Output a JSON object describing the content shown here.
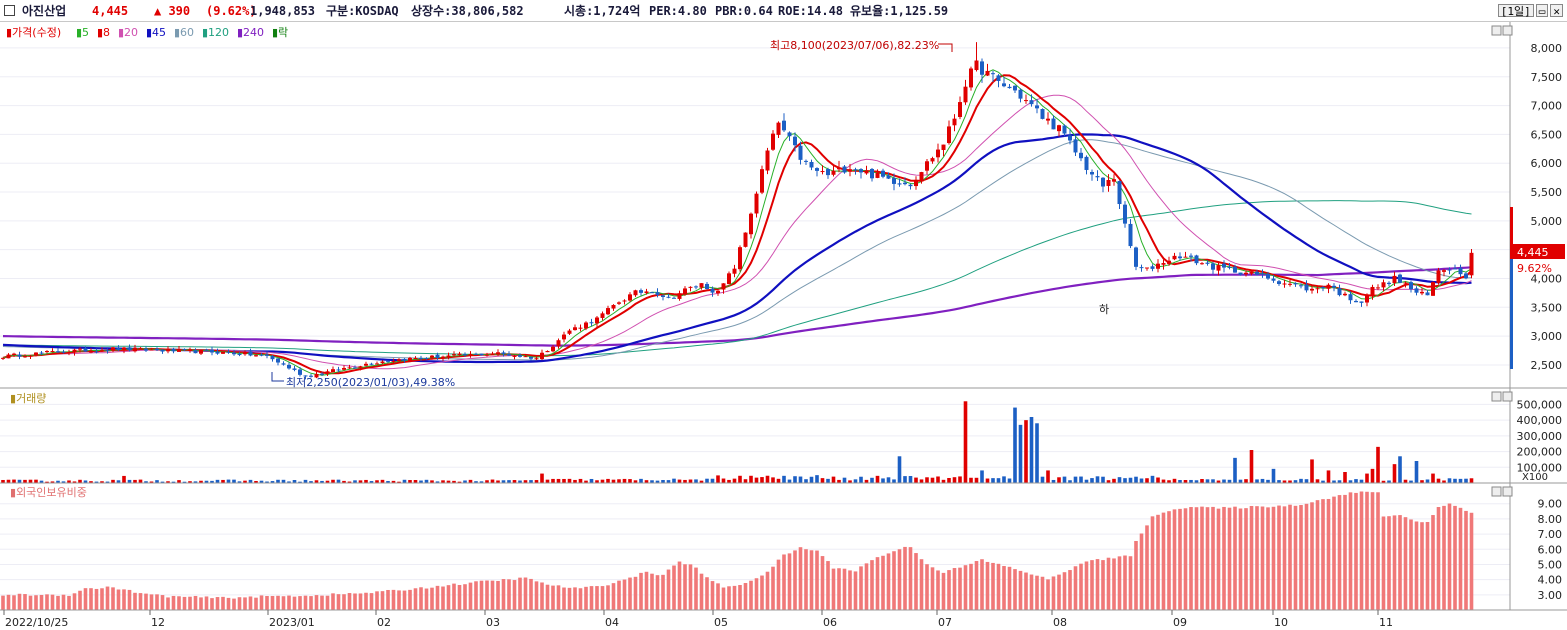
{
  "header": {
    "name": "아진산업",
    "price": "4,445",
    "change": "▲ 390",
    "change_pct": "(9.62%)",
    "volume": "1,948,853",
    "market": "구분:KOSDAQ",
    "shares": "상장수:38,806,582",
    "mcap": "시총:1,724억",
    "per": "PER:4.80",
    "pbr": "PBR:0.64",
    "roe": "ROE:14.48",
    "float_ratio": "유보율:1,125.59",
    "period": "[1일]",
    "colors": {
      "up": "#e00000",
      "down": "#1c5fc4",
      "text": "#1a1a3a"
    }
  },
  "chart_data": [
    {
      "type": "candlestick",
      "panel": "price",
      "legend": [
        {
          "label": "가격(수정)",
          "color": "#e00000"
        },
        {
          "label": "5",
          "color": "#28b028"
        },
        {
          "label": "8",
          "color": "#e00000"
        },
        {
          "label": "20",
          "color": "#d050b0"
        },
        {
          "label": "45",
          "color": "#1010c0"
        },
        {
          "label": "60",
          "color": "#7a9ab0"
        },
        {
          "label": "120",
          "color": "#20a080"
        },
        {
          "label": "240",
          "color": "#8020c0"
        },
        {
          "label": "락",
          "color": "#108010"
        }
      ],
      "y_ticks": [
        "8,000",
        "7,500",
        "7,000",
        "6,500",
        "6,000",
        "5,500",
        "5,000",
        "4,500",
        "4,000",
        "3,500",
        "3,000",
        "2,500"
      ],
      "ylim": [
        2100,
        8450
      ],
      "x_ticks": [
        "2022/10/25",
        "12",
        "2023/01",
        "02",
        "03",
        "04",
        "05",
        "06",
        "07",
        "08",
        "09",
        "10",
        "11"
      ],
      "annotations": {
        "high": "최고8,100(2023/07/06),82.23%",
        "low": "최저2,250(2023/01/03),49.38%",
        "mark": "하"
      },
      "last_price_label": "4,445",
      "last_pct_label": "9.62%",
      "close_anchors": [
        [
          0,
          2650
        ],
        [
          10,
          2730
        ],
        [
          20,
          2780
        ],
        [
          30,
          2750
        ],
        [
          40,
          2720
        ],
        [
          48,
          2650
        ],
        [
          52,
          2450
        ],
        [
          55,
          2300
        ],
        [
          60,
          2400
        ],
        [
          65,
          2500
        ],
        [
          70,
          2580
        ],
        [
          80,
          2650
        ],
        [
          90,
          2700
        ],
        [
          97,
          2620
        ],
        [
          100,
          2850
        ],
        [
          103,
          3100
        ],
        [
          108,
          3300
        ],
        [
          112,
          3600
        ],
        [
          115,
          3750
        ],
        [
          118,
          3800
        ],
        [
          121,
          3650
        ],
        [
          124,
          3800
        ],
        [
          127,
          3900
        ],
        [
          130,
          3750
        ],
        [
          133,
          4200
        ],
        [
          135,
          4800
        ],
        [
          137,
          5500
        ],
        [
          139,
          6200
        ],
        [
          141,
          6700
        ],
        [
          143,
          6400
        ],
        [
          145,
          6100
        ],
        [
          147,
          5900
        ],
        [
          150,
          5800
        ],
        [
          154,
          5950
        ],
        [
          158,
          5800
        ],
        [
          162,
          5700
        ],
        [
          165,
          5650
        ],
        [
          168,
          6000
        ],
        [
          171,
          6350
        ],
        [
          173,
          6800
        ],
        [
          175,
          7400
        ],
        [
          177,
          7700
        ],
        [
          179,
          7550
        ],
        [
          181,
          7400
        ],
        [
          184,
          7250
        ],
        [
          187,
          7000
        ],
        [
          189,
          6800
        ],
        [
          192,
          6600
        ],
        [
          195,
          6200
        ],
        [
          198,
          5800
        ],
        [
          200,
          5600
        ],
        [
          202,
          5750
        ],
        [
          204,
          4900
        ],
        [
          206,
          4200
        ],
        [
          208,
          4150
        ],
        [
          211,
          4300
        ],
        [
          214,
          4400
        ],
        [
          217,
          4300
        ],
        [
          220,
          4200
        ],
        [
          223,
          4150
        ],
        [
          226,
          4100
        ],
        [
          229,
          4050
        ],
        [
          232,
          3950
        ],
        [
          235,
          3880
        ],
        [
          238,
          3800
        ],
        [
          241,
          3900
        ],
        [
          243,
          3750
        ],
        [
          245,
          3650
        ],
        [
          247,
          3600
        ],
        [
          249,
          3820
        ],
        [
          251,
          3900
        ],
        [
          253,
          4000
        ],
        [
          255,
          3900
        ],
        [
          257,
          3750
        ],
        [
          259,
          3700
        ],
        [
          261,
          4150
        ],
        [
          263,
          4200
        ],
        [
          265,
          4120
        ],
        [
          266,
          4055
        ],
        [
          267,
          4445
        ]
      ],
      "volume_panel": {
        "label": "거래량",
        "y_ticks": [
          "500,000",
          "400,000",
          "300,000",
          "200,000",
          "100,000"
        ],
        "unit": "X100",
        "ylim": [
          0,
          560000
        ]
      },
      "foreign_panel": {
        "label": "외국인보유비중",
        "y_ticks": [
          "9.00",
          "8.00",
          "7.00",
          "6.00",
          "5.00",
          "4.00",
          "3.00"
        ],
        "ylim": [
          2.0,
          10.3
        ]
      }
    }
  ]
}
